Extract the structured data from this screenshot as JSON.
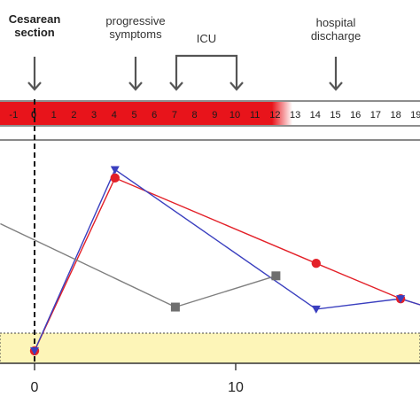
{
  "annotations": {
    "cesarean": "Cesarean section",
    "cesarean_line1": "Cesarean",
    "cesarean_line2": "section",
    "progressive": "progressive symptoms",
    "progressive_line1": "progressive",
    "progressive_line2": "symptoms",
    "icu": "ICU",
    "discharge": "hospital discharge",
    "discharge_line1": "hospital",
    "discharge_line2": "discharge"
  },
  "timeline": {
    "days": [
      "-1",
      "0",
      "1",
      "2",
      "3",
      "4",
      "5",
      "6",
      "7",
      "8",
      "9",
      "10",
      "11",
      "12",
      "13",
      "14",
      "15",
      "16",
      "17",
      "18",
      "19"
    ],
    "highlight_color": "#e8141b",
    "highlight_days": [
      -1,
      12
    ]
  },
  "colors": {
    "red": "#e32028",
    "blue": "#3a3fbf",
    "gray": "#7f7f7f",
    "band": "#fdf5b8",
    "axis": "#333333"
  },
  "chart_data": {
    "type": "line",
    "title": "",
    "xlabel": "",
    "ylabel": "",
    "xlim": [
      -1.7,
      19.2
    ],
    "x_ticks": [
      0,
      10
    ],
    "x_tick_labels": [
      "0",
      "10"
    ],
    "reference_line_x": 0,
    "band": "normal range (yellow)",
    "series": [
      {
        "color": "red",
        "marker": "circle",
        "x": [
          0,
          4,
          14,
          18.2,
          19.2
        ],
        "y": [
          0.6,
          8.9,
          4.8,
          3.1,
          2.8
        ]
      },
      {
        "color": "blue",
        "marker": "triangle-down",
        "x": [
          0,
          4,
          14,
          18.2,
          19.2
        ],
        "y": [
          0.6,
          9.3,
          2.6,
          3.1,
          2.8
        ]
      },
      {
        "color": "gray",
        "marker": "square",
        "x": [
          -1.7,
          7,
          12
        ],
        "y": [
          6.7,
          2.7,
          4.2
        ]
      }
    ]
  }
}
